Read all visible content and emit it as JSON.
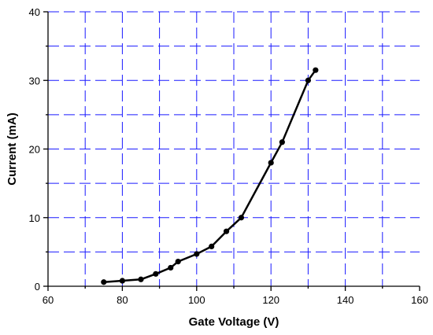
{
  "chart_data": {
    "type": "line",
    "title": "",
    "xlabel": "Gate Voltage (V)",
    "ylabel": "Current (mA)",
    "xlim": [
      60,
      160
    ],
    "ylim": [
      0,
      40
    ],
    "x_major_ticks": [
      60,
      80,
      100,
      120,
      140,
      160
    ],
    "x_tick_labels": [
      "60",
      "80",
      "100",
      "120",
      "140",
      "160"
    ],
    "x_minor_ticks": [
      70,
      90,
      110,
      130,
      150
    ],
    "y_major_ticks": [
      0,
      10,
      20,
      30,
      40
    ],
    "y_tick_labels": [
      "0",
      "10",
      "20",
      "30",
      "40"
    ],
    "y_minor_ticks": [
      5,
      15,
      25,
      35
    ],
    "grid": true,
    "grid_color": "#1a1aff",
    "series": [
      {
        "color": "#000000",
        "marker": "circle",
        "x": [
          75,
          80,
          85,
          89,
          93,
          95,
          100,
          104,
          108,
          112,
          120,
          123,
          130,
          132
        ],
        "y": [
          0.6,
          0.8,
          1.0,
          1.8,
          2.7,
          3.6,
          4.7,
          5.8,
          8.0,
          10.0,
          18.0,
          21.0,
          30.0,
          31.5
        ]
      }
    ]
  }
}
